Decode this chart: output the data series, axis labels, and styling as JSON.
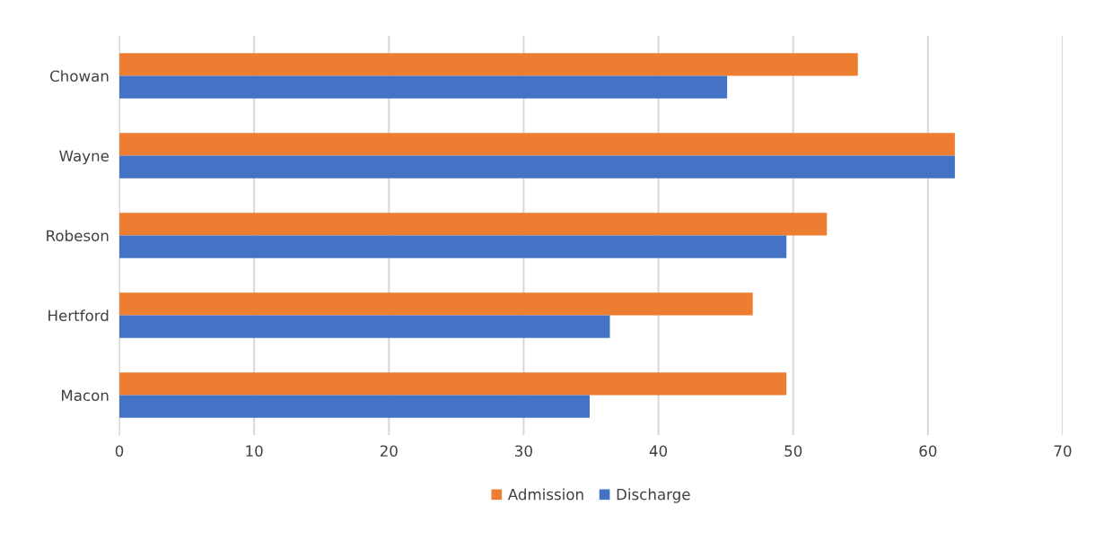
{
  "chart_data": {
    "type": "bar",
    "orientation": "horizontal",
    "categories": [
      "Chowan",
      "Wayne",
      "Robeson",
      "Hertford",
      "Macon"
    ],
    "series": [
      {
        "name": "Admission",
        "color": "#ed7d31",
        "values": [
          54.8,
          62.0,
          52.5,
          47.0,
          49.5
        ]
      },
      {
        "name": "Discharge",
        "color": "#4472c4",
        "values": [
          45.1,
          62.0,
          49.5,
          36.4,
          34.9
        ]
      }
    ],
    "xlim": [
      0,
      70
    ],
    "xticks": [
      0,
      10,
      20,
      30,
      40,
      50,
      60,
      70
    ],
    "grid": "x",
    "legend": "bottom"
  }
}
